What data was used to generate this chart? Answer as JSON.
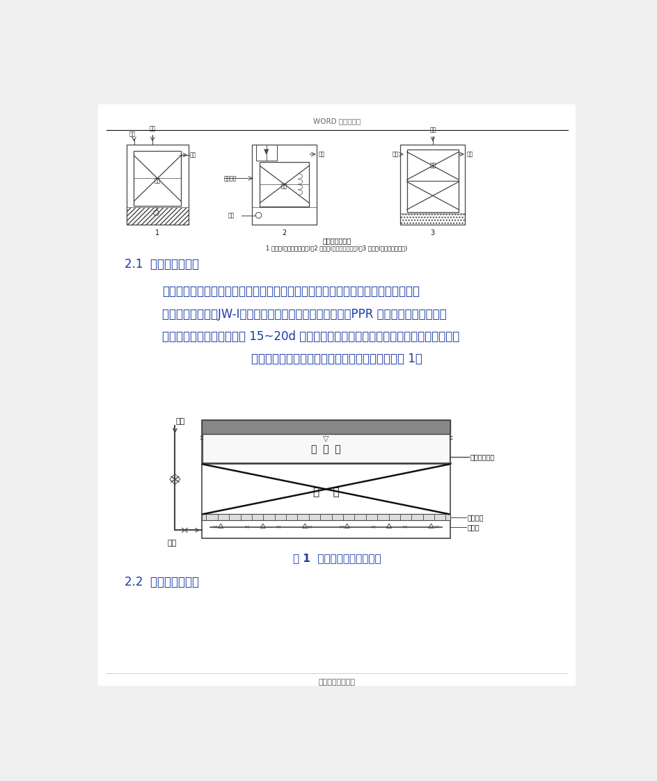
{
  "header_text": "WORD 格式可编辑",
  "section_title": "2.1  生物接触氧化池",
  "section_title2": "2.2  生物过滤沉淀池",
  "para_lines": [
    "接触氧化池由池体、填料、支架、曝气装置、布水装置及排泥管道等部件所组成。池",
    "体为矩形钢结构，JW-Ⅰ填料均匀分层装填，下部中心进水、PPR 穿孔管布气，水、气同",
    "向流动。污水处理设备运行 15~20d 后，填料微孔发生堵塞造成接触氧化池涌水，加大曝",
    "气量，定期进行反冲洗。接触氧化池构造示意见图 1。"
  ],
  "fig_caption": "图 1  接触氧化池构造示意图",
  "footer_text": "专业知识整理分享",
  "cap_line1": "生物接触氧化池",
  "cap_line2": "1 分流式(鼓风曝气充氧式)；2 分流式(射流曝气充氧式)；3 直接式(鼓风曝气充氧式)",
  "bg_color": "#f0f0f0",
  "page_bg": "#ffffff",
  "text_color": "#1a3aaa",
  "diagram_color": "#444444",
  "black": "#111111"
}
